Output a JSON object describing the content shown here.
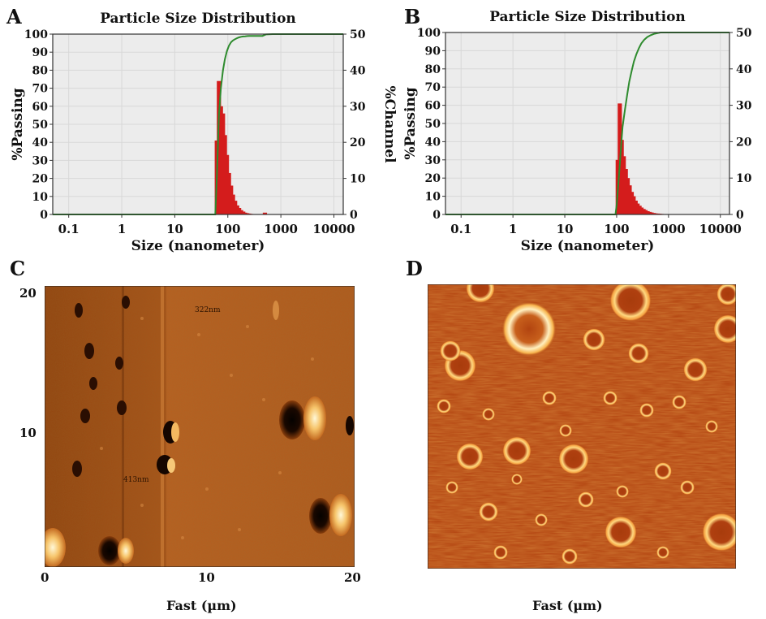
{
  "panels": {
    "a": {
      "letter": "A"
    },
    "b": {
      "letter": "B"
    },
    "c": {
      "letter": "C",
      "xlabel": "Fast (µm)",
      "ticks_x": [
        "0",
        "10",
        "20"
      ],
      "ticks_y": [
        "20",
        "10"
      ],
      "annotations": [
        "322nm",
        "413nm"
      ]
    },
    "d": {
      "letter": "D",
      "xlabel": "Fast (µm)"
    }
  },
  "colors": {
    "bar": "#d41c1c",
    "curve": "#2e8b2e",
    "plot_bg": "#ececec",
    "grid": "#d8d8d8",
    "afm_c": "#b5601e",
    "afm_d": "#b4420e"
  },
  "chart_data": [
    {
      "type": "bar",
      "title": "Particle Size Distribution",
      "xlabel": "Size (nanometer)",
      "ylabel": "%Passing",
      "y2label": "%Channel",
      "xscale": "log",
      "xlim": [
        0.05,
        15000
      ],
      "ylim": [
        0,
        100
      ],
      "y2lim": [
        0,
        50
      ],
      "xticks": [
        "0.1",
        "1",
        "10",
        "100",
        "1000",
        "10000"
      ],
      "yticks": [
        "0",
        "10",
        "20",
        "30",
        "40",
        "50",
        "60",
        "70",
        "80",
        "90",
        "100"
      ],
      "y2ticks": [
        "0",
        "10",
        "20",
        "30",
        "40",
        "50"
      ],
      "grid": true,
      "series": [
        {
          "axis": "y2",
          "x": [
            62,
            68,
            74,
            81,
            88,
            96,
            105,
            115,
            125,
            137,
            150,
            163,
            178,
            195,
            212,
            232,
            253,
            276,
            301,
            500
          ],
          "values": [
            20.5,
            37,
            30,
            28,
            22,
            16.5,
            11.5,
            8,
            5.5,
            3.8,
            2.5,
            1.8,
            1.2,
            0.8,
            0.5,
            0.35,
            0.25,
            0.15,
            0.1,
            0.5
          ]
        },
        {
          "axis": "y",
          "type": "line",
          "x": [
            0.05,
            1,
            10,
            58,
            62,
            68,
            74,
            81,
            88,
            96,
            105,
            115,
            125,
            137,
            150,
            163,
            178,
            195,
            212,
            232,
            253,
            276,
            301,
            450,
            520,
            700,
            1000,
            15000
          ],
          "values": [
            0,
            0,
            0,
            0,
            20,
            55,
            70,
            80,
            86,
            90.5,
            93.5,
            95.5,
            96.5,
            97.2,
            97.8,
            98.2,
            98.5,
            98.7,
            98.8,
            98.9,
            99,
            99,
            99,
            99,
            99.8,
            100,
            100,
            100
          ]
        }
      ]
    },
    {
      "type": "bar",
      "title": "Particle Size Distribution",
      "xlabel": "Size (nanometer)",
      "ylabel": "%Passing",
      "y2label": "%Channel",
      "xscale": "log",
      "xlim": [
        0.05,
        15000
      ],
      "ylim": [
        0,
        100
      ],
      "y2lim": [
        0,
        50
      ],
      "xticks": [
        "0.1",
        "1",
        "10",
        "100",
        "1000",
        "10000"
      ],
      "yticks": [
        "0",
        "10",
        "20",
        "30",
        "40",
        "50",
        "60",
        "70",
        "80",
        "90",
        "100"
      ],
      "y2ticks": [
        "0",
        "10",
        "20",
        "30",
        "40",
        "50"
      ],
      "grid": true,
      "series": [
        {
          "axis": "y2",
          "x": [
            105,
            115,
            125,
            137,
            150,
            163,
            178,
            195,
            212,
            232,
            253,
            276,
            301,
            330,
            360,
            395,
            430,
            470,
            515,
            560,
            615,
            670,
            730,
            800,
            875
          ],
          "values": [
            15,
            30.5,
            20.5,
            16,
            12.5,
            10,
            8,
            6.2,
            5,
            3.8,
            3,
            2.4,
            1.9,
            1.5,
            1.2,
            0.9,
            0.7,
            0.55,
            0.4,
            0.3,
            0.25,
            0.2,
            0.15,
            0.1,
            0.08
          ]
        },
        {
          "axis": "y",
          "type": "line",
          "x": [
            0.05,
            1,
            10,
            95,
            100,
            110,
            120,
            130,
            145,
            160,
            175,
            195,
            215,
            240,
            270,
            300,
            340,
            390,
            450,
            520,
            600,
            700,
            15000
          ],
          "values": [
            0,
            0,
            0,
            0,
            5,
            20,
            35,
            48,
            58,
            66,
            73,
            79,
            84,
            88,
            91.5,
            94,
            96,
            97.5,
            98.5,
            99.2,
            99.6,
            100,
            100
          ]
        }
      ]
    }
  ]
}
